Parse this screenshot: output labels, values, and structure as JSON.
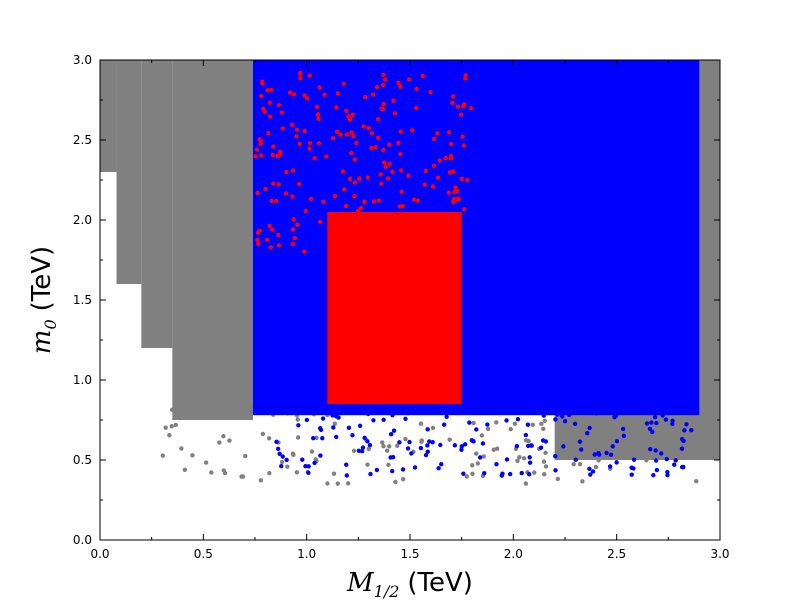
{
  "chart_data": {
    "type": "scatter",
    "title": "",
    "xlabel": {
      "symbol": "M",
      "subscript": "1/2",
      "unit": "(TeV)"
    },
    "ylabel": {
      "symbol": "m",
      "subscript": "0",
      "unit": "(TeV)"
    },
    "xlim": [
      0.0,
      3.0
    ],
    "ylim": [
      0.0,
      3.0
    ],
    "xticks": [
      "0.0",
      "0.5",
      "1.0",
      "1.5",
      "2.0",
      "2.5",
      "3.0"
    ],
    "yticks": [
      "0.0",
      "0.5",
      "1.0",
      "1.5",
      "2.0",
      "2.5",
      "3.0"
    ],
    "grid": false,
    "legend": "none",
    "series": [
      {
        "color": "#808080",
        "regions": [
          {
            "x": [
              0.0,
              0.08
            ],
            "y": [
              2.3,
              3.0
            ]
          },
          {
            "x": [
              0.08,
              0.2
            ],
            "y": [
              1.6,
              3.0
            ]
          },
          {
            "x": [
              0.2,
              0.35
            ],
            "y": [
              1.2,
              3.0
            ]
          },
          {
            "x": [
              0.35,
              0.74
            ],
            "y": [
              0.75,
              3.0
            ]
          },
          {
            "x": [
              2.2,
              3.0
            ],
            "y": [
              0.5,
              1.3
            ]
          },
          {
            "x": [
              2.6,
              3.0
            ],
            "y": [
              1.2,
              3.0
            ]
          }
        ],
        "scatter": [
          {
            "x": [
              0.28,
              2.95
            ],
            "y": [
              0.35,
              0.9
            ]
          }
        ]
      },
      {
        "color": "#0000ff",
        "regions": [
          {
            "x": [
              0.74,
              2.9
            ],
            "y": [
              0.78,
              3.0
            ]
          }
        ],
        "scatter": [
          {
            "x": [
              0.85,
              2.9
            ],
            "y": [
              0.4,
              0.85
            ]
          }
        ]
      },
      {
        "color": "#ff0000",
        "regions": [
          {
            "x": [
              1.1,
              1.75
            ],
            "y": [
              0.85,
              2.05
            ]
          }
        ],
        "scatter": [
          {
            "x": [
              0.75,
              1.8
            ],
            "y": [
              1.8,
              2.95
            ]
          }
        ]
      }
    ]
  }
}
